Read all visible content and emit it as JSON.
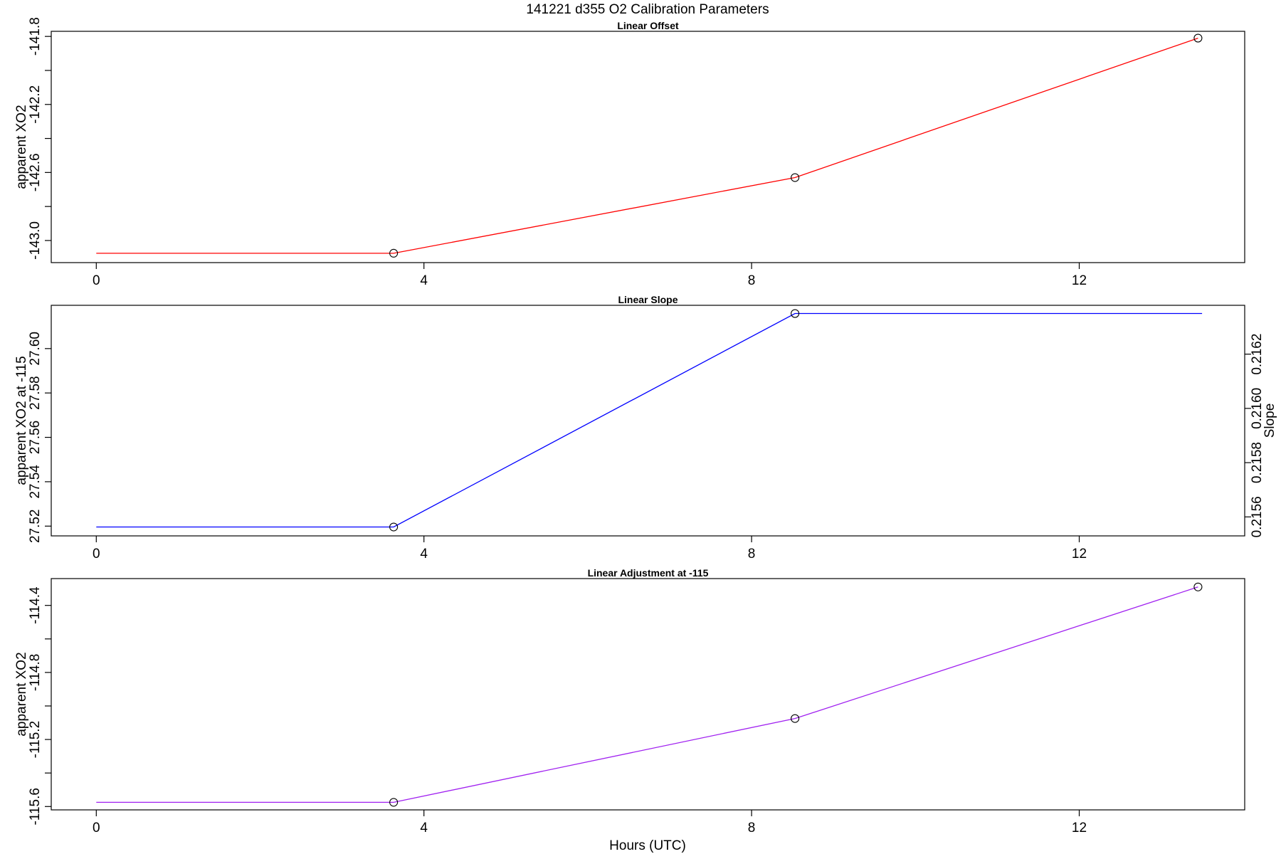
{
  "figure": {
    "title": "141221   d355   O2 Calibration Parameters",
    "xlabel": "Hours (UTC)"
  },
  "chart_data": [
    {
      "type": "line",
      "title": "Linear Offset",
      "xlabel": "",
      "ylabel": "apparent XO2",
      "xlim": [
        -0.55,
        14.02
      ],
      "ylim": [
        -143.13,
        -141.77
      ],
      "xticks": [
        0,
        4,
        8,
        12
      ],
      "xtick_labels": [
        "0",
        "4",
        "8",
        "12"
      ],
      "yticks": [
        -143.0,
        -142.8,
        -142.6,
        -142.4,
        -142.2,
        -142.0,
        -141.8
      ],
      "ytick_labels": [
        "-143.0",
        "",
        "-142.6",
        "",
        "-142.2",
        "",
        "-141.8"
      ],
      "line_color": "#ff0000",
      "series": [
        {
          "x": [
            0.0,
            3.63,
            8.53,
            13.45
          ],
          "y": [
            -143.075,
            -143.075,
            -142.63,
            -141.81
          ]
        }
      ],
      "points": {
        "x": [
          3.63,
          8.53,
          13.45
        ],
        "y": [
          -143.075,
          -142.63,
          -141.81
        ]
      }
    },
    {
      "type": "line",
      "title": "Linear Slope",
      "xlabel": "",
      "ylabel": "apparent XO2 at -115",
      "ylabel_right": "Slope",
      "xlim": [
        -0.55,
        14.02
      ],
      "ylim": [
        27.5156,
        27.6195
      ],
      "ylim_right": [
        0.21553,
        0.21638
      ],
      "xticks": [
        0,
        4,
        8,
        12
      ],
      "xtick_labels": [
        "0",
        "4",
        "8",
        "12"
      ],
      "yticks": [
        27.52,
        27.54,
        27.56,
        27.58,
        27.6
      ],
      "ytick_labels": [
        "27.52",
        "27.54",
        "27.56",
        "27.58",
        "27.60"
      ],
      "yticks_right": [
        0.2156,
        0.2158,
        0.216,
        0.2162
      ],
      "ytick_labels_right": [
        "0.2156",
        "0.2158",
        "0.2160",
        "0.2162"
      ],
      "line_color": "#0000ff",
      "series": [
        {
          "x": [
            0.0,
            3.63,
            8.53,
            13.5
          ],
          "y": [
            27.5196,
            27.5196,
            27.6158,
            27.6158
          ]
        }
      ],
      "points": {
        "x": [
          3.63,
          8.53
        ],
        "y": [
          27.5196,
          27.6158
        ]
      }
    },
    {
      "type": "line",
      "title": "Linear Adjustment at -115",
      "xlabel": "Hours (UTC)",
      "ylabel": "apparent XO2",
      "xlim": [
        -0.55,
        14.02
      ],
      "ylim": [
        -115.62,
        -114.24
      ],
      "xticks": [
        0,
        4,
        8,
        12
      ],
      "xtick_labels": [
        "0",
        "4",
        "8",
        "12"
      ],
      "yticks": [
        -115.6,
        -115.4,
        -115.2,
        -115.0,
        -114.8,
        -114.6,
        -114.4
      ],
      "ytick_labels": [
        "-115.6",
        "",
        "-115.2",
        "",
        "-114.8",
        "",
        "-114.4"
      ],
      "line_color": "#a020f0",
      "series": [
        {
          "x": [
            0.0,
            3.63,
            8.53,
            13.45
          ],
          "y": [
            -115.575,
            -115.575,
            -115.075,
            -114.29
          ]
        }
      ],
      "points": {
        "x": [
          3.63,
          8.53,
          13.45
        ],
        "y": [
          -115.575,
          -115.075,
          -114.29
        ]
      }
    }
  ]
}
